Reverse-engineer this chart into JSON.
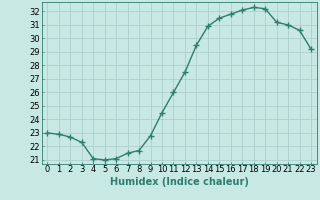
{
  "x": [
    0,
    1,
    2,
    3,
    4,
    5,
    6,
    7,
    8,
    9,
    10,
    11,
    12,
    13,
    14,
    15,
    16,
    17,
    18,
    19,
    20,
    21,
    22,
    23
  ],
  "y": [
    23.0,
    22.9,
    22.7,
    22.3,
    21.1,
    21.0,
    21.1,
    21.5,
    21.7,
    22.8,
    24.5,
    26.0,
    27.5,
    29.5,
    30.9,
    31.5,
    31.8,
    32.1,
    32.3,
    32.2,
    31.2,
    31.0,
    30.6,
    29.2
  ],
  "line_color": "#2e7d6e",
  "marker": "+",
  "marker_size": 4,
  "background_color": "#c8e8e4",
  "grid_color": "#aed0cc",
  "xlim": [
    -0.5,
    23.5
  ],
  "ylim": [
    20.7,
    32.7
  ],
  "yticks": [
    21,
    22,
    23,
    24,
    25,
    26,
    27,
    28,
    29,
    30,
    31,
    32
  ],
  "xticks": [
    0,
    1,
    2,
    3,
    4,
    5,
    6,
    7,
    8,
    9,
    10,
    11,
    12,
    13,
    14,
    15,
    16,
    17,
    18,
    19,
    20,
    21,
    22,
    23
  ],
  "xlabel": "Humidex (Indice chaleur)",
  "xlabel_fontsize": 7,
  "tick_fontsize": 6,
  "line_width": 1.0,
  "markeredgewidth": 1.0
}
